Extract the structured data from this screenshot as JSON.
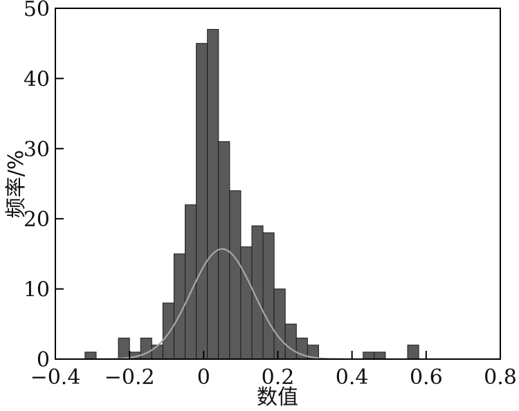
{
  "chart_data": {
    "type": "bar",
    "subtype": "histogram",
    "title": "",
    "xlabel": "数值",
    "ylabel": "频率/%",
    "xlim": [
      -0.4,
      0.8
    ],
    "ylim": [
      0,
      50
    ],
    "xticks": [
      -0.4,
      -0.2,
      0,
      0.2,
      0.4,
      0.6,
      0.8
    ],
    "xtick_labels": [
      "−0.4",
      "−0.2",
      "0",
      "0.2",
      "0.4",
      "0.6",
      "0.8"
    ],
    "yticks": [
      0,
      10,
      20,
      30,
      40,
      50
    ],
    "ytick_labels": [
      "0",
      "10",
      "20",
      "30",
      "40",
      "50"
    ],
    "grid": false,
    "bin_width": 0.03,
    "bin_starts": [
      -0.32,
      -0.29,
      -0.26,
      -0.23,
      -0.2,
      -0.17,
      -0.14,
      -0.11,
      -0.08,
      -0.05,
      -0.02,
      0.01,
      0.04,
      0.07,
      0.1,
      0.13,
      0.16,
      0.19,
      0.22,
      0.25,
      0.28,
      0.31,
      0.34,
      0.37,
      0.4,
      0.43,
      0.46,
      0.49,
      0.52,
      0.55
    ],
    "values": [
      1,
      0,
      0,
      3,
      1,
      3,
      2,
      8,
      15,
      22,
      45,
      47,
      31,
      24,
      16,
      19,
      18,
      10,
      5,
      3,
      2,
      0,
      0,
      0,
      0,
      1,
      1,
      0,
      0,
      2
    ],
    "fit_curve": {
      "type": "normal",
      "mean": 0.05,
      "std": 0.085,
      "peak": 15.7,
      "x_range": [
        -0.3,
        0.38
      ]
    },
    "colors": {
      "bar_fill": "#5a5a5a",
      "bar_edge": "#1a1a1a",
      "curve": "#a8a8a8",
      "axis": "#000000"
    }
  }
}
